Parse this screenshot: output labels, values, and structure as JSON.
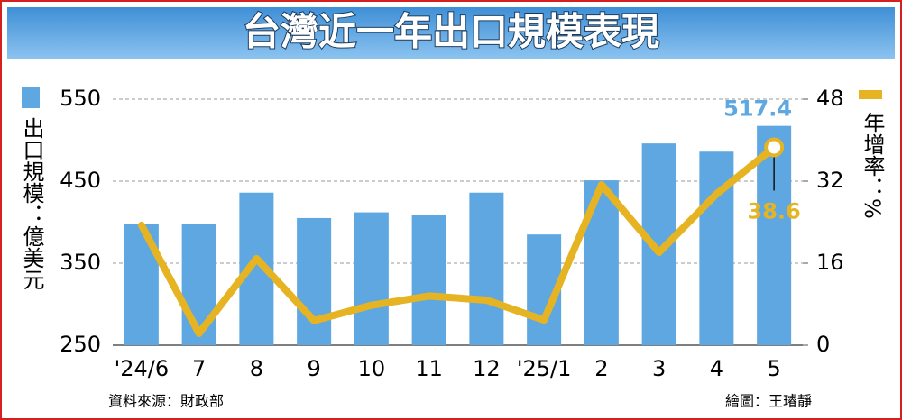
{
  "chart_data": {
    "type": "bar-line",
    "title": "台灣近一年出口規模表現",
    "y_label": "出口規模：億美元",
    "y2_label": "年增率：%",
    "categories": [
      "'24/6",
      "7",
      "8",
      "9",
      "10",
      "11",
      "12",
      "'25/1",
      "2",
      "3",
      "4",
      "5"
    ],
    "series": [
      {
        "type": "bar",
        "color": "#5ea7e1",
        "values": [
          398,
          398,
          436,
          405,
          412,
          409,
          436,
          385,
          451,
          496,
          486,
          517.4
        ],
        "value_labels": [
          null,
          null,
          null,
          null,
          null,
          null,
          null,
          null,
          null,
          null,
          null,
          "517.4"
        ]
      },
      {
        "type": "line",
        "axis": "y2",
        "color": "#e6b423",
        "values": [
          23.4,
          2.3,
          16.9,
          4.8,
          7.8,
          9.6,
          8.8,
          4.9,
          31.3,
          18.1,
          29.5,
          38.6
        ],
        "value_labels": [
          null,
          null,
          null,
          null,
          null,
          null,
          null,
          null,
          null,
          null,
          null,
          "38.6"
        ]
      }
    ],
    "ylim": [
      250,
      550
    ],
    "yticks": [
      250,
      350,
      450,
      550
    ],
    "y2lim": [
      0,
      48
    ],
    "y2ticks": [
      0,
      16,
      32,
      48
    ],
    "grid": true,
    "source": "資料來源：財政部",
    "credit": "繪圖：王璿靜"
  }
}
